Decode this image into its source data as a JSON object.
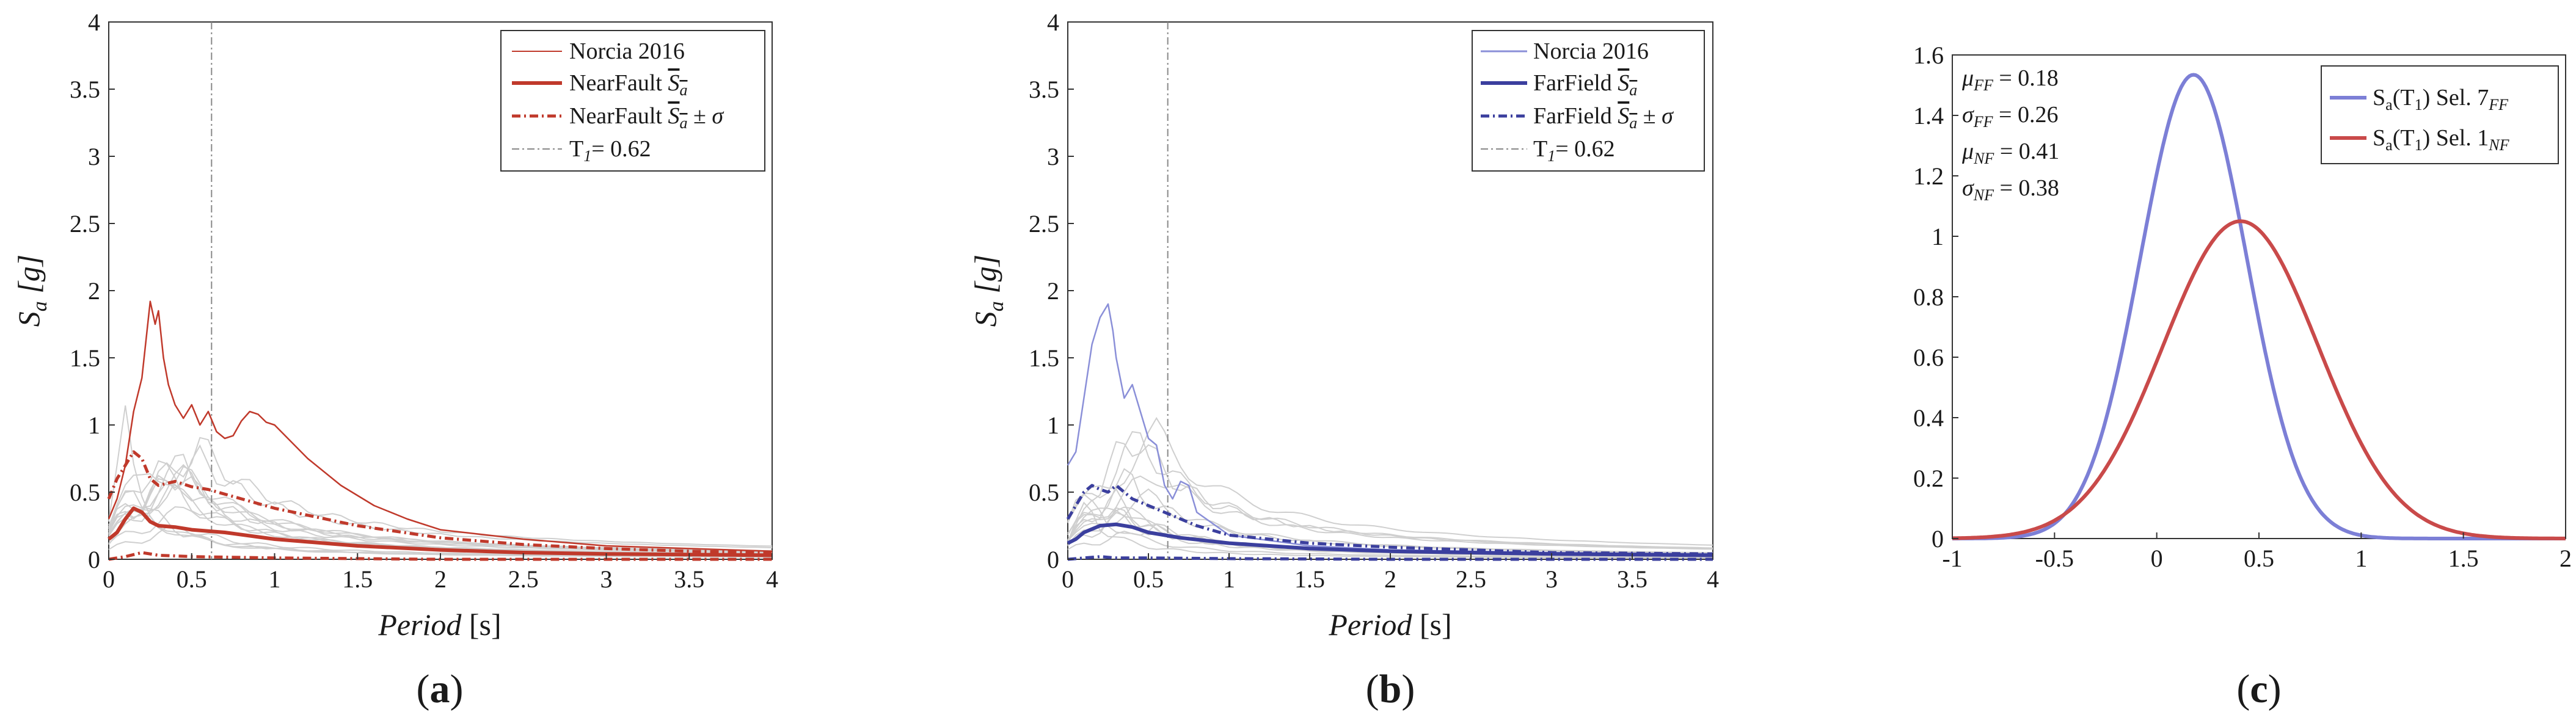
{
  "chart_data": [
    {
      "type": "line",
      "panel_label": "a",
      "xlabel": "Period [s]",
      "ylabel": "Sa [g]",
      "xlim": [
        0,
        4
      ],
      "ylim": [
        0,
        4
      ],
      "xticks": [
        "0",
        "0.5",
        "1",
        "1.5",
        "2",
        "2.5",
        "3",
        "3.5",
        "4"
      ],
      "yticks": [
        "0",
        "0.5",
        "1",
        "1.5",
        "2",
        "2.5",
        "3",
        "3.5",
        "4"
      ],
      "grid": false,
      "legend_position": "top-right",
      "vline": {
        "x": 0.62,
        "label": "T1 = 0.62"
      },
      "colors": {
        "series": "#c0392b",
        "records": "#cfcfcf"
      },
      "series": [
        {
          "name": "Norcia 2016",
          "style": "thin",
          "x": [
            0,
            0.05,
            0.1,
            0.15,
            0.2,
            0.25,
            0.28,
            0.3,
            0.33,
            0.36,
            0.4,
            0.45,
            0.5,
            0.55,
            0.6,
            0.65,
            0.7,
            0.75,
            0.8,
            0.85,
            0.9,
            0.95,
            1.0,
            1.2,
            1.4,
            1.6,
            1.8,
            2.0,
            2.5,
            3.0,
            3.5,
            4.0
          ],
          "y": [
            0.3,
            0.45,
            0.7,
            1.1,
            1.35,
            1.92,
            1.75,
            1.85,
            1.5,
            1.3,
            1.15,
            1.05,
            1.15,
            1.0,
            1.1,
            0.95,
            0.9,
            0.92,
            1.03,
            1.1,
            1.08,
            1.02,
            1.0,
            0.75,
            0.55,
            0.4,
            0.3,
            0.22,
            0.15,
            0.1,
            0.08,
            0.06
          ]
        },
        {
          "name": "NearFault mean Sa",
          "style": "thick",
          "x": [
            0,
            0.05,
            0.1,
            0.15,
            0.2,
            0.25,
            0.3,
            0.4,
            0.5,
            0.7,
            1.0,
            1.5,
            2.0,
            2.5,
            3.0,
            3.5,
            4.0
          ],
          "y": [
            0.15,
            0.2,
            0.3,
            0.38,
            0.35,
            0.28,
            0.25,
            0.24,
            0.22,
            0.2,
            0.15,
            0.1,
            0.07,
            0.05,
            0.04,
            0.035,
            0.03
          ]
        },
        {
          "name": "NearFault mean Sa ± σ",
          "style": "dashdot",
          "x": [
            0,
            0.05,
            0.1,
            0.15,
            0.2,
            0.25,
            0.3,
            0.4,
            0.5,
            0.6,
            0.8,
            1.0,
            1.5,
            2.0,
            2.5,
            3.0,
            3.5,
            4.0
          ],
          "y": [
            0.45,
            0.6,
            0.7,
            0.8,
            0.75,
            0.6,
            0.55,
            0.58,
            0.54,
            0.52,
            0.45,
            0.38,
            0.25,
            0.16,
            0.11,
            0.08,
            0.06,
            0.05
          ]
        },
        {
          "name": "NearFault mean Sa − σ",
          "style": "dashdot",
          "x": [
            0,
            0.1,
            0.2,
            0.3,
            0.5,
            1.0,
            2.0,
            3.0,
            4.0
          ],
          "y": [
            0.0,
            0.02,
            0.05,
            0.03,
            0.02,
            0.01,
            0.0,
            0.0,
            0.0
          ]
        }
      ],
      "legend": [
        "Norcia 2016",
        "NearFault Sa",
        "NearFault Sa ± σ",
        "T1 = 0.62"
      ]
    },
    {
      "type": "line",
      "panel_label": "b",
      "xlabel": "Period [s]",
      "ylabel": "Sa [g]",
      "xlim": [
        0,
        4
      ],
      "ylim": [
        0,
        4
      ],
      "xticks": [
        "0",
        "0.5",
        "1",
        "1.5",
        "2",
        "2.5",
        "3",
        "3.5",
        "4"
      ],
      "yticks": [
        "0",
        "0.5",
        "1",
        "1.5",
        "2",
        "2.5",
        "3",
        "3.5",
        "4"
      ],
      "grid": false,
      "legend_position": "top-right",
      "vline": {
        "x": 0.62,
        "label": "T1 = 0.62"
      },
      "colors": {
        "series": "#3b3f9e",
        "norcia": "#8a8fd8",
        "records": "#cfcfcf"
      },
      "series": [
        {
          "name": "Norcia 2016",
          "style": "thin",
          "x": [
            0,
            0.05,
            0.1,
            0.15,
            0.2,
            0.25,
            0.28,
            0.3,
            0.35,
            0.4,
            0.45,
            0.5,
            0.55,
            0.6,
            0.65,
            0.7,
            0.75,
            0.8,
            1.0,
            1.5,
            2.0,
            3.0,
            4.0
          ],
          "y": [
            0.7,
            0.8,
            1.2,
            1.6,
            1.8,
            1.9,
            1.7,
            1.5,
            1.2,
            1.3,
            1.1,
            0.9,
            0.85,
            0.55,
            0.45,
            0.58,
            0.55,
            0.35,
            0.18,
            0.1,
            0.07,
            0.05,
            0.04
          ]
        },
        {
          "name": "FarField mean Sa",
          "style": "thick",
          "x": [
            0,
            0.05,
            0.1,
            0.2,
            0.3,
            0.4,
            0.5,
            0.7,
            1.0,
            1.5,
            2.0,
            3.0,
            4.0
          ],
          "y": [
            0.12,
            0.15,
            0.2,
            0.25,
            0.26,
            0.24,
            0.2,
            0.16,
            0.12,
            0.08,
            0.06,
            0.04,
            0.03
          ]
        },
        {
          "name": "FarField mean Sa ± σ",
          "style": "dashdot",
          "x": [
            0,
            0.05,
            0.1,
            0.15,
            0.2,
            0.25,
            0.3,
            0.4,
            0.5,
            0.6,
            0.8,
            1.0,
            1.5,
            2.0,
            2.5,
            3.0,
            4.0
          ],
          "y": [
            0.3,
            0.4,
            0.5,
            0.55,
            0.52,
            0.5,
            0.55,
            0.45,
            0.4,
            0.35,
            0.25,
            0.18,
            0.12,
            0.09,
            0.07,
            0.05,
            0.04
          ]
        },
        {
          "name": "FarField mean Sa − σ",
          "style": "dashdot",
          "x": [
            0,
            0.1,
            0.2,
            0.3,
            0.5,
            1.0,
            2.0,
            4.0
          ],
          "y": [
            0.0,
            0.01,
            0.02,
            0.01,
            0.01,
            0.005,
            0.0,
            0.0
          ]
        }
      ],
      "legend": [
        "Norcia 2016",
        "FarField Sa",
        "FarField Sa ± σ",
        "T1 = 0.62"
      ]
    },
    {
      "type": "line",
      "panel_label": "c",
      "xlim": [
        -1,
        2
      ],
      "ylim": [
        0,
        1.6
      ],
      "xticks": [
        "-1",
        "-0.5",
        "0",
        "0.5",
        "1",
        "1.5",
        "2"
      ],
      "yticks": [
        "0",
        "0.2",
        "0.4",
        "0.6",
        "0.8",
        "1",
        "1.2",
        "1.4",
        "1.6"
      ],
      "grid": false,
      "legend_position": "top-right",
      "annotations": [
        "μFF = 0.18",
        "σFF = 0.26",
        "μNF = 0.41",
        "σNF = 0.38"
      ],
      "colors": {
        "ff": "#7c7fd6",
        "nf": "#c94a4a"
      },
      "series": [
        {
          "name": "Sa(T1) Sel. 7FF",
          "distribution": "normal",
          "mu": 0.18,
          "sigma": 0.26
        },
        {
          "name": "Sa(T1) Sel. 1NF",
          "distribution": "normal",
          "mu": 0.41,
          "sigma": 0.38
        }
      ],
      "legend": [
        "Sa(T1) Sel. 7FF",
        "Sa(T1) Sel. 1NF"
      ]
    }
  ]
}
